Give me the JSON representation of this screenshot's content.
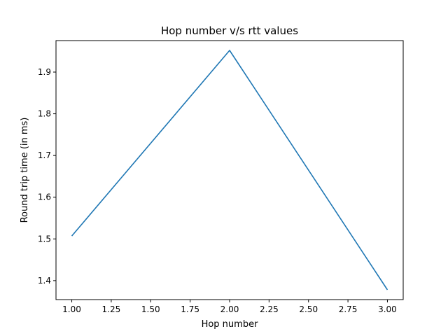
{
  "chart_data": {
    "type": "line",
    "title": "Hop number v/s rtt values",
    "xlabel": "Hop number",
    "ylabel": "Round trip time (in ms)",
    "x": [
      1.0,
      2.0,
      3.0
    ],
    "series": [
      {
        "values": [
          1.507,
          1.952,
          1.378
        ],
        "color": "#1f77b4"
      }
    ],
    "xlim": [
      0.9,
      3.1
    ],
    "ylim": [
      1.3545,
      1.9755
    ],
    "xticks": [
      1.0,
      1.25,
      1.5,
      1.75,
      2.0,
      2.25,
      2.5,
      2.75,
      3.0
    ],
    "xtick_labels": [
      "1.00",
      "1.25",
      "1.50",
      "1.75",
      "2.00",
      "2.25",
      "2.50",
      "2.75",
      "3.00"
    ],
    "yticks": [
      1.4,
      1.5,
      1.6,
      1.7,
      1.8,
      1.9
    ],
    "ytick_labels": [
      "1.4",
      "1.5",
      "1.6",
      "1.7",
      "1.8",
      "1.9"
    ],
    "grid": false,
    "legend": "none"
  }
}
